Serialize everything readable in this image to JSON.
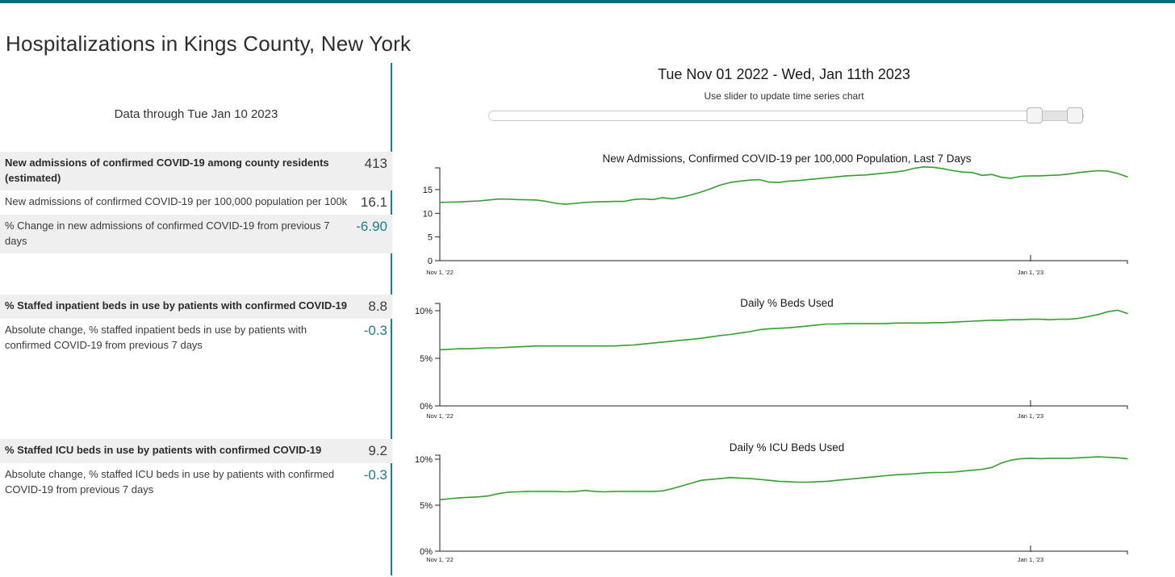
{
  "page": {
    "title": "Hospitalizations in Kings County, New York"
  },
  "left_panel": {
    "data_through": "Data through Tue Jan 10 2023",
    "sections": [
      {
        "rows": [
          {
            "label": "New admissions of confirmed COVID-19 among county residents (estimated)",
            "value": "413",
            "bold": true,
            "shaded": true,
            "accent": false
          },
          {
            "label": "New admissions of confirmed COVID-19 per 100,000 population per 100k",
            "value": "16.1",
            "bold": false,
            "shaded": false,
            "accent": false
          },
          {
            "label": "% Change in new admissions of confirmed COVID-19 from previous 7 days",
            "value": "-6.90",
            "bold": false,
            "shaded": true,
            "accent": true
          }
        ]
      },
      {
        "rows": [
          {
            "label": "% Staffed inpatient beds in use by patients with confirmed COVID-19",
            "value": "8.8",
            "bold": true,
            "shaded": true,
            "accent": false
          },
          {
            "label": "Absolute change, % staffed inpatient beds in use by patients with confirmed COVID-19 from previous 7 days",
            "value": "-0.3",
            "bold": false,
            "shaded": false,
            "accent": true
          }
        ]
      },
      {
        "rows": [
          {
            "label": "% Staffed ICU beds in use by patients with confirmed COVID-19",
            "value": "9.2",
            "bold": true,
            "shaded": true,
            "accent": false
          },
          {
            "label": "Absolute change, % staffed ICU beds in use by patients with confirmed COVID-19 from previous 7 days",
            "value": "-0.3",
            "bold": false,
            "shaded": false,
            "accent": true
          }
        ]
      }
    ]
  },
  "right_panel": {
    "range_title": "Tue Nov 01 2022 - Wed, Jan 11th 2023",
    "slider_hint": "Use slider to update time series chart",
    "slider": {
      "range_start_pct": 91,
      "range_end_pct": 100
    }
  },
  "colors": {
    "topbar_teal": "#00697b",
    "divider_teal": "#147f97",
    "accent_teal": "#17808f",
    "line_green": "#33a02c",
    "row_shade": "#efefef"
  },
  "chart_data": [
    {
      "type": "line",
      "title": "New Admissions, Confirmed COVID-19 per 100,000 Population, Last 7 Days",
      "x_start": "2022-11-01",
      "x_end": "2023-01-11",
      "x_ticks": [
        {
          "day": 0,
          "label": "Nov 1, '22"
        },
        {
          "day": 61,
          "label": "Jan 1, '23"
        }
      ],
      "y_ticks": [
        0,
        5,
        10,
        15
      ],
      "ylim": [
        0,
        19.8
      ],
      "y_suffix": "",
      "grid": false,
      "legend": "none",
      "line_color": "#33a02c",
      "series": [
        {
          "name": "New admissions per 100k, last 7 days",
          "values": [
            12.3,
            12.35,
            12.4,
            12.5,
            12.6,
            12.8,
            13.0,
            13.0,
            12.9,
            12.85,
            12.8,
            12.5,
            12.1,
            11.9,
            12.1,
            12.3,
            12.4,
            12.45,
            12.5,
            12.5,
            12.9,
            13.05,
            12.9,
            13.3,
            13.05,
            13.4,
            13.9,
            14.5,
            15.2,
            16.0,
            16.5,
            16.8,
            17.0,
            17.1,
            16.6,
            16.5,
            16.8,
            16.9,
            17.1,
            17.3,
            17.5,
            17.7,
            17.9,
            18.0,
            18.1,
            18.3,
            18.5,
            18.7,
            19.0,
            19.5,
            19.8,
            19.7,
            19.4,
            19.0,
            18.7,
            18.6,
            18.0,
            18.2,
            17.6,
            17.4,
            17.8,
            17.9,
            17.9,
            18.0,
            18.1,
            18.3,
            18.6,
            18.8,
            19.0,
            18.9,
            18.4,
            17.7
          ]
        }
      ]
    },
    {
      "type": "line",
      "title": "Daily % Beds Used",
      "x_start": "2022-11-01",
      "x_end": "2023-01-11",
      "x_ticks": [
        {
          "day": 0,
          "label": "Nov 1, '22"
        },
        {
          "day": 61,
          "label": "Jan 1, '23"
        }
      ],
      "y_ticks": [
        0,
        5,
        10
      ],
      "ylim": [
        0,
        10.8
      ],
      "y_suffix": "%",
      "grid": false,
      "legend": "none",
      "line_color": "#33a02c",
      "series": [
        {
          "name": "Daily % staffed inpatient beds used by COVID-19 patients",
          "values": [
            5.9,
            5.95,
            6.0,
            6.0,
            6.05,
            6.1,
            6.1,
            6.15,
            6.2,
            6.25,
            6.3,
            6.3,
            6.3,
            6.3,
            6.3,
            6.3,
            6.3,
            6.3,
            6.3,
            6.35,
            6.4,
            6.5,
            6.6,
            6.7,
            6.8,
            6.9,
            7.0,
            7.1,
            7.25,
            7.4,
            7.5,
            7.65,
            7.8,
            8.0,
            8.1,
            8.15,
            8.2,
            8.3,
            8.4,
            8.5,
            8.6,
            8.6,
            8.65,
            8.65,
            8.65,
            8.65,
            8.65,
            8.7,
            8.7,
            8.7,
            8.7,
            8.75,
            8.75,
            8.8,
            8.85,
            8.9,
            8.95,
            9.0,
            9.0,
            9.05,
            9.05,
            9.1,
            9.1,
            9.05,
            9.1,
            9.1,
            9.2,
            9.4,
            9.6,
            9.9,
            10.05,
            9.7
          ]
        }
      ]
    },
    {
      "type": "line",
      "title": "Daily % ICU Beds Used",
      "x_start": "2022-11-01",
      "x_end": "2023-01-11",
      "x_ticks": [
        {
          "day": 0,
          "label": "Nov 1, '22"
        },
        {
          "day": 61,
          "label": "Jan 1, '23"
        }
      ],
      "y_ticks": [
        0,
        5,
        10
      ],
      "ylim": [
        0,
        10.5
      ],
      "y_suffix": "%",
      "grid": false,
      "legend": "none",
      "line_color": "#33a02c",
      "series": [
        {
          "name": "Daily % staffed ICU beds used by COVID-19 patients",
          "values": [
            5.6,
            5.7,
            5.8,
            5.85,
            5.9,
            6.0,
            6.25,
            6.4,
            6.45,
            6.5,
            6.5,
            6.5,
            6.5,
            6.45,
            6.5,
            6.6,
            6.5,
            6.45,
            6.5,
            6.5,
            6.5,
            6.5,
            6.5,
            6.55,
            6.8,
            7.1,
            7.4,
            7.7,
            7.8,
            7.9,
            8.0,
            7.95,
            7.9,
            7.8,
            7.7,
            7.6,
            7.55,
            7.5,
            7.5,
            7.55,
            7.6,
            7.7,
            7.8,
            7.9,
            8.0,
            8.1,
            8.2,
            8.3,
            8.35,
            8.4,
            8.5,
            8.55,
            8.55,
            8.6,
            8.7,
            8.8,
            8.9,
            9.1,
            9.6,
            9.9,
            10.05,
            10.1,
            10.05,
            10.1,
            10.1,
            10.1,
            10.15,
            10.2,
            10.25,
            10.2,
            10.15,
            10.05
          ]
        }
      ]
    }
  ]
}
